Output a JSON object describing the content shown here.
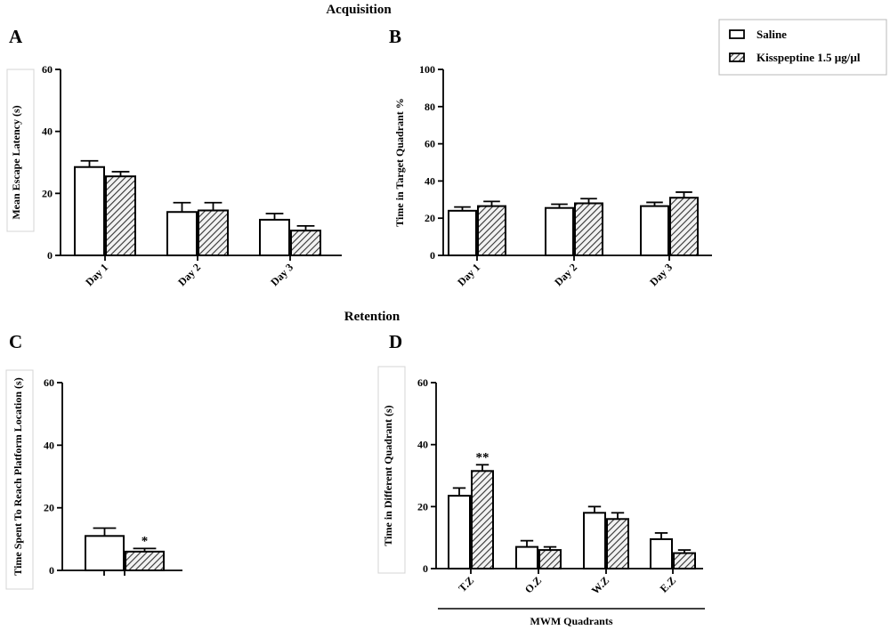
{
  "sections": {
    "acquisition": "Acquisition",
    "retention": "Retention"
  },
  "legend": {
    "items": [
      {
        "label": "Saline",
        "fill": "white"
      },
      {
        "label": "Kisspeptine  1.5 µg/µl",
        "fill": "hatch"
      }
    ]
  },
  "chart_data": [
    {
      "panel": "A",
      "type": "bar",
      "ylabel": "Mean Escape Latency (s)",
      "xlabel": "",
      "ylim": [
        0,
        60
      ],
      "yticks": [
        0,
        20,
        40,
        60
      ],
      "categories": [
        "Day 1",
        "Day 2",
        "Day 3"
      ],
      "series": [
        {
          "name": "Saline",
          "values": [
            28.5,
            14,
            11.5
          ],
          "errors": [
            2,
            3,
            2
          ]
        },
        {
          "name": "Kisspeptine  1.5 µg/µl",
          "values": [
            25.5,
            14.5,
            8
          ],
          "errors": [
            1.5,
            2.5,
            1.5
          ]
        }
      ],
      "annotations": [
        "",
        "",
        ""
      ]
    },
    {
      "panel": "B",
      "type": "bar",
      "ylabel": "Time in Target Quadrant %",
      "xlabel": "",
      "ylim": [
        0,
        100
      ],
      "yticks": [
        0,
        20,
        40,
        60,
        80,
        100
      ],
      "categories": [
        "Day 1",
        "Day 2",
        "Day 3"
      ],
      "series": [
        {
          "name": "Saline",
          "values": [
            24,
            25.5,
            26.5
          ],
          "errors": [
            2,
            2,
            2
          ]
        },
        {
          "name": "Kisspeptine  1.5 µg/µl",
          "values": [
            26.5,
            28,
            31
          ],
          "errors": [
            2.5,
            2.5,
            3
          ]
        }
      ],
      "annotations": [
        "",
        "",
        ""
      ]
    },
    {
      "panel": "C",
      "type": "bar",
      "ylabel": "Time Spent To Reach Platform Location (s)",
      "xlabel": "",
      "ylim": [
        0,
        60
      ],
      "yticks": [
        0,
        20,
        40,
        60
      ],
      "categories": [
        ""
      ],
      "series": [
        {
          "name": "Saline",
          "values": [
            11
          ],
          "errors": [
            2.5
          ]
        },
        {
          "name": "Kisspeptine  1.5 µg/µl",
          "values": [
            6
          ],
          "errors": [
            1
          ]
        }
      ],
      "annotations": [
        "*"
      ]
    },
    {
      "panel": "D",
      "type": "bar",
      "ylabel": "Time in Different Quadrant (s)",
      "xlabel": "MWM Quadrants",
      "ylim": [
        0,
        60
      ],
      "yticks": [
        0,
        20,
        40,
        60
      ],
      "categories": [
        "T.Z",
        "O.Z",
        "W.Z",
        "E.Z"
      ],
      "series": [
        {
          "name": "Saline",
          "values": [
            23.5,
            7,
            18,
            9.5
          ],
          "errors": [
            2.5,
            2,
            2,
            2
          ]
        },
        {
          "name": "Kisspeptine  1.5 µg/µl",
          "values": [
            31.5,
            6,
            16,
            5
          ],
          "errors": [
            2,
            1,
            2,
            1
          ]
        }
      ],
      "annotations": [
        "**",
        "",
        "",
        ""
      ]
    }
  ]
}
